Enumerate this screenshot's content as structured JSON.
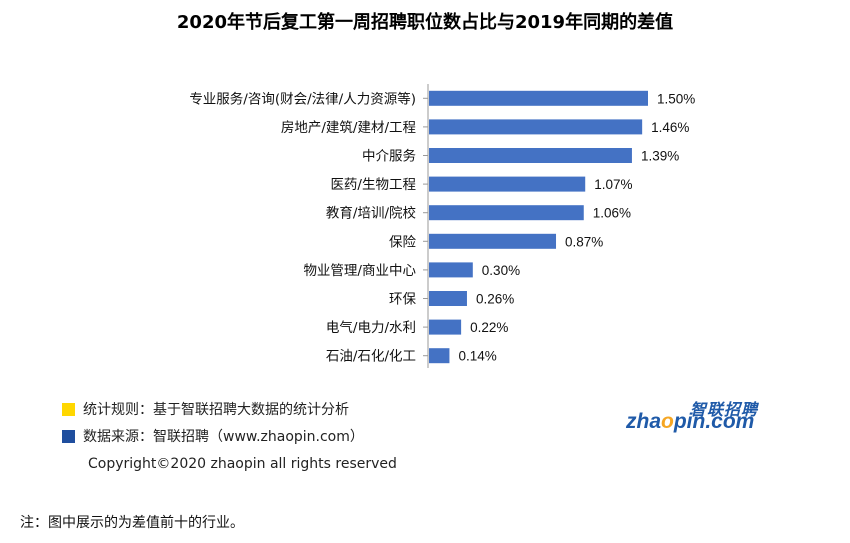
{
  "chart_data": {
    "type": "bar",
    "orientation": "horizontal",
    "title": "2020年节后复工第一周招聘职位数占比与2019年同期的差值",
    "categories": [
      "专业服务/咨询(财会/法律/人力资源等)",
      "房地产/建筑/建材/工程",
      "中介服务",
      "医药/生物工程",
      "教育/培训/院校",
      "保险",
      "物业管理/商业中心",
      "环保",
      "电气/电力/水利",
      "石油/石化/化工"
    ],
    "values": [
      1.5,
      1.46,
      1.39,
      1.07,
      1.06,
      0.87,
      0.3,
      0.26,
      0.22,
      0.14
    ],
    "data_labels": [
      "1.50%",
      "1.46%",
      "1.39%",
      "1.07%",
      "1.06%",
      "0.87%",
      "0.30%",
      "0.26%",
      "0.22%",
      "0.14%"
    ],
    "unit": "%",
    "bar_color": "#4472c4",
    "xlim": [
      0,
      1.5
    ],
    "grid": false
  },
  "legend": {
    "rule_label": "统计规则：基于智联招聘大数据的统计分析",
    "rule_color": "#ffd700",
    "source_label": "数据来源：智联招聘（www.zhaopin.com）",
    "source_color": "#1f4e9e"
  },
  "logo": {
    "brand": "智联招聘",
    "domain": "zhaopin.com",
    "accent": "#f5a623"
  },
  "copyright": "Copyright©2020 zhaopin all rights reserved",
  "footnote": "注：图中展示的为差值前十的行业。"
}
